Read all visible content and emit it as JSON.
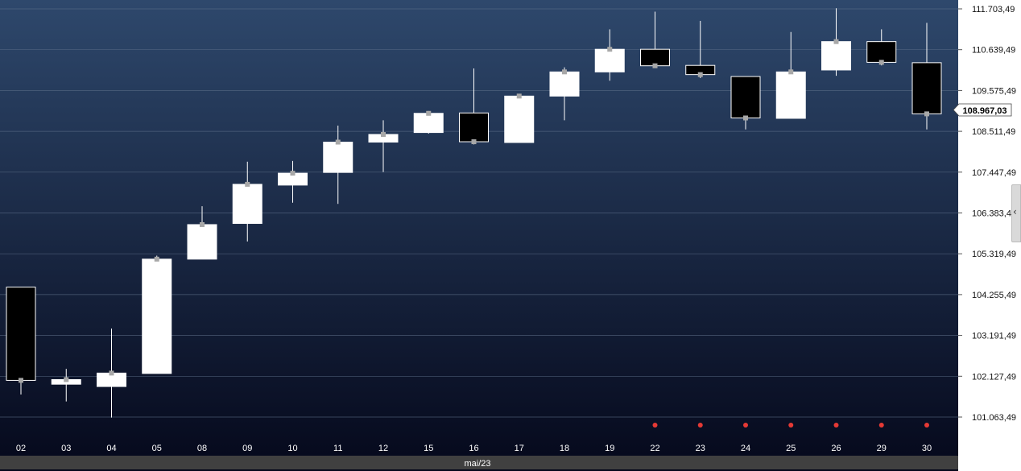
{
  "chart_data": {
    "type": "candlestick",
    "x_label_month": "mai/23",
    "ylim": [
      100600,
      111900
    ],
    "y_ticks": [
      {
        "value": 111703.49,
        "label": "111.703,49"
      },
      {
        "value": 110639.49,
        "label": "110.639,49"
      },
      {
        "value": 109575.49,
        "label": "109.575,49"
      },
      {
        "value": 108511.49,
        "label": "108.511,49"
      },
      {
        "value": 107447.49,
        "label": "107.447,49"
      },
      {
        "value": 106383.49,
        "label": "106.383,49"
      },
      {
        "value": 105319.49,
        "label": "105.319,49"
      },
      {
        "value": 104255.49,
        "label": "104.255,49"
      },
      {
        "value": 103191.49,
        "label": "103.191,49"
      },
      {
        "value": 102127.49,
        "label": "102.127,49"
      },
      {
        "value": 101063.49,
        "label": "101.063,49"
      }
    ],
    "last_price": {
      "value": 108967.03,
      "label": "108.967,03"
    },
    "candles": [
      {
        "day": "02",
        "open": 104450,
        "high": 104450,
        "low": 101650,
        "close": 102020,
        "marker": false
      },
      {
        "day": "03",
        "open": 101920,
        "high": 102320,
        "low": 101470,
        "close": 102040,
        "marker": false
      },
      {
        "day": "04",
        "open": 101860,
        "high": 103370,
        "low": 101050,
        "close": 102210,
        "marker": false
      },
      {
        "day": "05",
        "open": 102200,
        "high": 105270,
        "low": 102200,
        "close": 105180,
        "marker": false
      },
      {
        "day": "08",
        "open": 105180,
        "high": 106560,
        "low": 105180,
        "close": 106080,
        "marker": false
      },
      {
        "day": "09",
        "open": 106110,
        "high": 107720,
        "low": 105640,
        "close": 107130,
        "marker": false
      },
      {
        "day": "10",
        "open": 107110,
        "high": 107740,
        "low": 106650,
        "close": 107420,
        "marker": false
      },
      {
        "day": "11",
        "open": 107440,
        "high": 108660,
        "low": 106620,
        "close": 108230,
        "marker": false
      },
      {
        "day": "12",
        "open": 108230,
        "high": 108800,
        "low": 107450,
        "close": 108430,
        "marker": false
      },
      {
        "day": "15",
        "open": 108480,
        "high": 109040,
        "low": 108450,
        "close": 108980,
        "marker": false
      },
      {
        "day": "16",
        "open": 108990,
        "high": 110150,
        "low": 108170,
        "close": 108240,
        "marker": false
      },
      {
        "day": "17",
        "open": 108220,
        "high": 109480,
        "low": 108220,
        "close": 109430,
        "marker": false
      },
      {
        "day": "18",
        "open": 109430,
        "high": 110180,
        "low": 108800,
        "close": 110060,
        "marker": false
      },
      {
        "day": "19",
        "open": 110060,
        "high": 111170,
        "low": 109830,
        "close": 110650,
        "marker": false
      },
      {
        "day": "22",
        "open": 110650,
        "high": 111630,
        "low": 110200,
        "close": 110220,
        "marker": true
      },
      {
        "day": "23",
        "open": 110230,
        "high": 111390,
        "low": 109900,
        "close": 109990,
        "marker": true
      },
      {
        "day": "24",
        "open": 109940,
        "high": 109940,
        "low": 108560,
        "close": 108860,
        "marker": true
      },
      {
        "day": "25",
        "open": 108850,
        "high": 111100,
        "low": 108850,
        "close": 110060,
        "marker": true
      },
      {
        "day": "26",
        "open": 110110,
        "high": 111720,
        "low": 109960,
        "close": 110850,
        "marker": true
      },
      {
        "day": "29",
        "open": 110850,
        "high": 111170,
        "low": 110230,
        "close": 110310,
        "marker": true
      },
      {
        "day": "30",
        "open": 110300,
        "high": 111340,
        "low": 108560,
        "close": 108967.03,
        "marker": true
      }
    ]
  },
  "colors": {
    "background_top": "#2e486c",
    "background_bottom": "#05081b",
    "up_candle": "#ffffff",
    "down_candle": "#000000",
    "wick": "#ffffff",
    "marker_dot": "#e53935",
    "axis_strip": "#404040"
  },
  "icons": {
    "side_panel_toggle": "chevron-left-icon",
    "side_panel_glyph": "‹"
  }
}
